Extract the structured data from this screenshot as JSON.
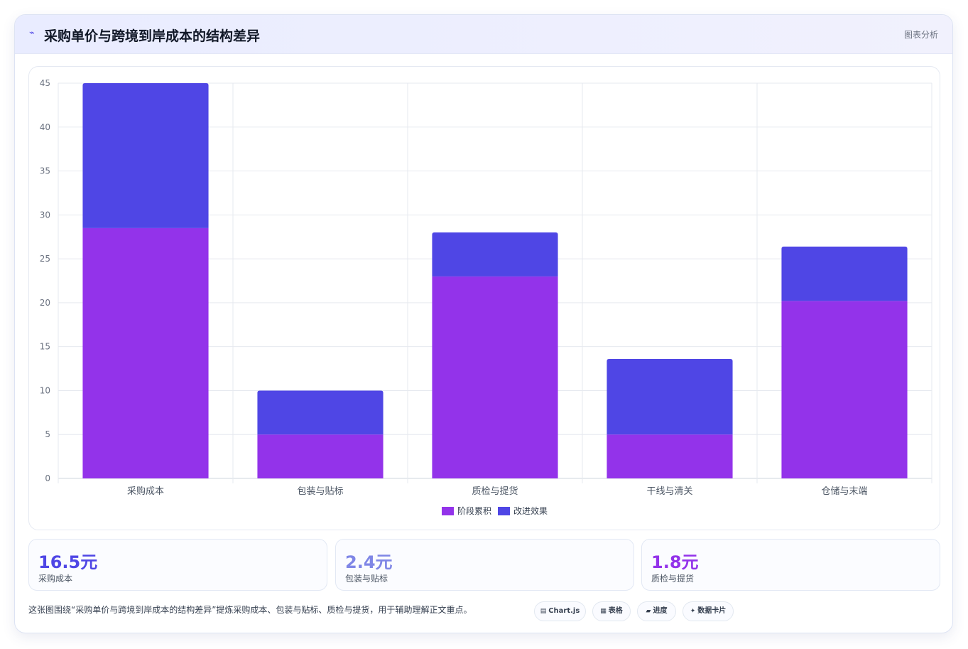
{
  "header": {
    "icon": "sparkline-icon",
    "title": "采购单价与跨境到岸成本的结构差异",
    "badge": "图表分析"
  },
  "chart_data": {
    "type": "bar",
    "stacked": true,
    "categories": [
      "采购成本",
      "包装与贴标",
      "质检与提货",
      "干线与清关",
      "仓储与末端"
    ],
    "series": [
      {
        "name": "阶段累积",
        "color": "#9333ea",
        "values": [
          28.5,
          5,
          23,
          5,
          20.2
        ]
      },
      {
        "name": "改进效果",
        "color": "#4f46e5",
        "values": [
          16.5,
          5,
          5,
          8.6,
          6.2
        ]
      }
    ],
    "ylim": [
      0,
      45
    ],
    "yticks": [
      0,
      5,
      10,
      15,
      20,
      25,
      30,
      35,
      40,
      45
    ],
    "grid": true,
    "legend": "bottom-center"
  },
  "stats": [
    {
      "value": "16.5元",
      "label": "采购成本",
      "color": "#4f46e5"
    },
    {
      "value": "2.4元",
      "label": "包装与贴标",
      "color": "#7f86e6"
    },
    {
      "value": "1.8元",
      "label": "质检与提货",
      "color": "#9333ea"
    }
  ],
  "footer": {
    "caption": "这张图围绕“采购单价与跨境到岸成本的结构差异”提炼采购成本、包装与贴标、质检与提货，用于辅助理解正文重点。",
    "tags": [
      {
        "icon": "chart-icon",
        "glyph": "▤",
        "label": "Chart.js"
      },
      {
        "icon": "table-icon",
        "glyph": "▦",
        "label": "表格"
      },
      {
        "icon": "progress-icon",
        "glyph": "▰",
        "label": "进度"
      },
      {
        "icon": "card-icon",
        "glyph": "✦",
        "label": "数据卡片"
      }
    ]
  }
}
